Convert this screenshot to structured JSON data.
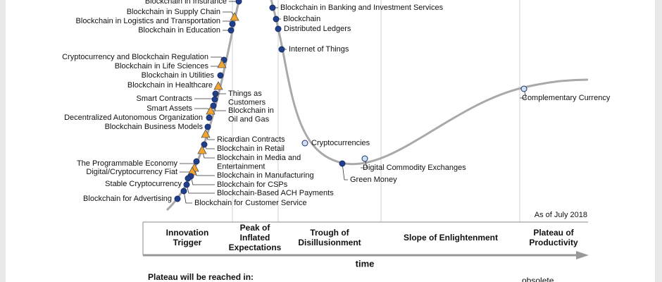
{
  "technologies": [
    [
      "Blockchain in Insurance"
    ],
    [
      "Blockchain in Supply Chain"
    ],
    [
      "Blockchain in Logistics and Transportation"
    ],
    [
      "Blockchain in Education"
    ],
    [
      "Cryptocurrency and Blockchain Regulation"
    ],
    [
      "Blockchain in Life Sciences"
    ],
    [
      "Blockchain in Utilities"
    ],
    [
      "Blockchain in Healthcare"
    ],
    [
      "Smart Contracts"
    ],
    [
      "Things as",
      "Customers"
    ],
    [
      "Blockchain in",
      "Oil and Gas"
    ],
    [
      "Smart Assets"
    ],
    [
      "Decentralized Autonomous Organization"
    ],
    [
      "Blockchain Business Models"
    ],
    [
      "Ricardian Contracts"
    ],
    [
      "Blockchain in Retail"
    ],
    [
      "Blockchain in Media and",
      "Entertainment"
    ],
    [
      "The Programmable Economy"
    ],
    [
      "Blockchain in Manufacturing"
    ],
    [
      "Digital/Cryptocurrency Fiat"
    ],
    [
      "Blockchain for CSPs"
    ],
    [
      "Stable Cryptocurrency"
    ],
    [
      "Blockchain-Based ACH Payments"
    ],
    [
      "Blockchain for Customer Service"
    ],
    [
      "Blockchain for Advertising"
    ],
    [
      "Blockchain in Banking and Investment Services"
    ],
    [
      "Blockchain"
    ],
    [
      "Distributed Ledgers"
    ],
    [
      "Internet of Things"
    ],
    [
      "Cryptocurrencies"
    ],
    [
      "Green Money"
    ],
    [
      "Digital Commodity Exchanges"
    ],
    [
      "Complementary Currency"
    ]
  ],
  "phases": [
    [
      "Innovation",
      "Trigger"
    ],
    [
      "Peak of",
      "Inflated",
      "Expectations"
    ],
    [
      "Trough of",
      "Disillusionment"
    ],
    [
      "Slope of Enlightenment"
    ],
    [
      "Plateau of",
      "Productivity"
    ]
  ],
  "as_of": "As of July 2018",
  "x_axis_label": "time",
  "legend_title": "Plateau will be reached in:",
  "legend_item": "obsolete"
}
